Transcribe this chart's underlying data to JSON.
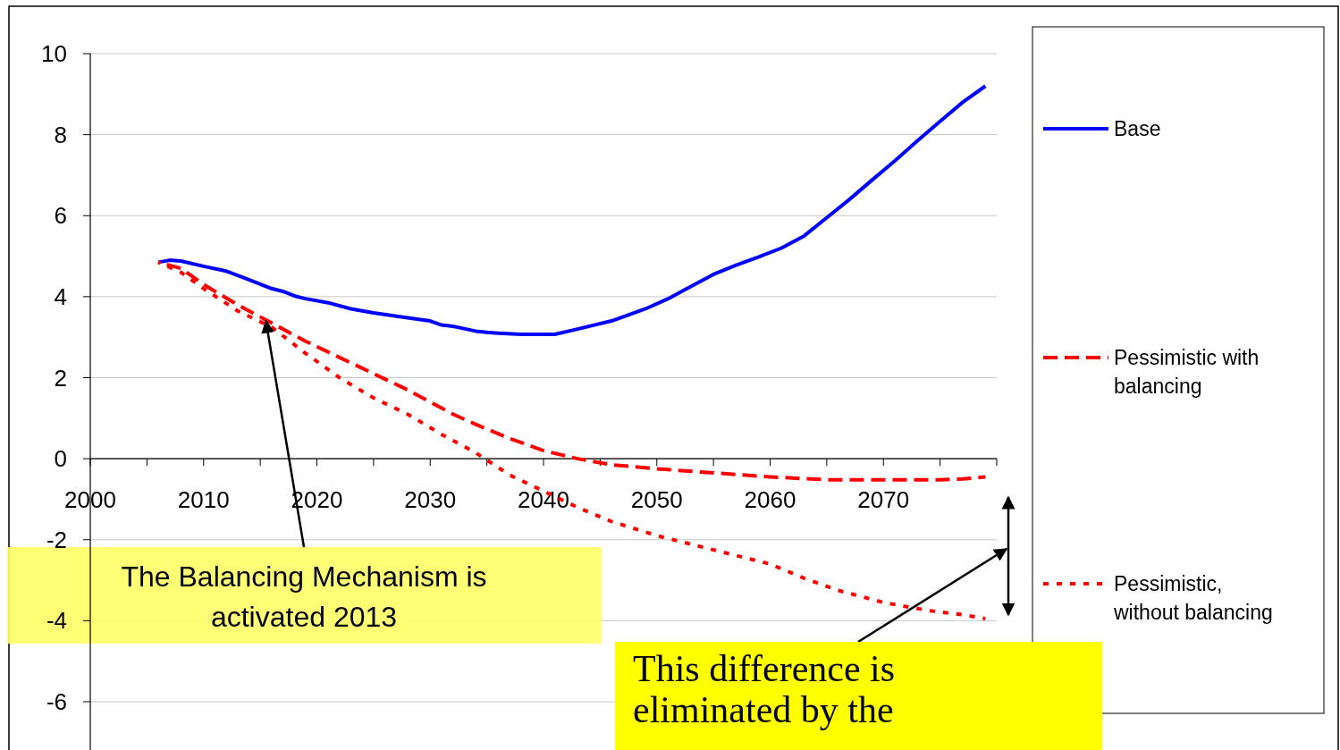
{
  "chart_data": {
    "type": "line",
    "xlim": [
      2000,
      2080
    ],
    "xticks": [
      2000,
      {
        "value": 2005,
        "label": null
      },
      2010,
      {
        "value": 2015,
        "label": null
      },
      2020,
      {
        "value": 2025,
        "label": null
      },
      2030,
      {
        "value": 2035,
        "label": null
      },
      2040,
      {
        "value": 2045,
        "label": null
      },
      2050,
      {
        "value": 2055,
        "label": null
      },
      2060,
      {
        "value": 2065,
        "label": null
      },
      2070,
      {
        "value": 2075,
        "label": null
      },
      {
        "value": 2080,
        "label": null
      }
    ],
    "ylim": [
      -6,
      10
    ],
    "yticks": [
      -6,
      -4,
      -2,
      0,
      2,
      4,
      6,
      8,
      10
    ],
    "grid": "y",
    "legend": "right",
    "series": [
      {
        "name": "Base",
        "color": "#0000ff",
        "line_style": "solid",
        "x": [
          2006,
          2007,
          2008,
          2010,
          2012,
          2014,
          2016,
          2017,
          2018,
          2019,
          2021,
          2023,
          2025,
          2028,
          2030,
          2031,
          2032,
          2034,
          2035,
          2036,
          2038,
          2041,
          2043,
          2046,
          2049,
          2051,
          2053,
          2055,
          2057,
          2059,
          2061,
          2063,
          2065,
          2067,
          2069,
          2071,
          2073,
          2075,
          2077,
          2079
        ],
        "values": [
          4.85,
          4.9,
          4.88,
          4.75,
          4.63,
          4.42,
          4.2,
          4.13,
          4.02,
          3.95,
          3.85,
          3.7,
          3.6,
          3.48,
          3.4,
          3.3,
          3.27,
          3.15,
          3.12,
          3.1,
          3.07,
          3.07,
          3.2,
          3.4,
          3.7,
          3.95,
          4.25,
          4.55,
          4.78,
          4.98,
          5.2,
          5.5,
          5.95,
          6.4,
          6.88,
          7.35,
          7.85,
          8.33,
          8.8,
          9.2
        ]
      },
      {
        "name": "Pessimistic with balancing",
        "color": "#ff0000",
        "line_style": "dashed",
        "x": [
          2006,
          2008,
          2010,
          2013,
          2016,
          2019,
          2022,
          2025,
          2028,
          2030,
          2032,
          2034,
          2037,
          2040,
          2043,
          2046,
          2050,
          2055,
          2060,
          2065,
          2070,
          2075,
          2077,
          2079
        ],
        "values": [
          4.85,
          4.7,
          4.3,
          3.8,
          3.35,
          2.9,
          2.5,
          2.1,
          1.7,
          1.4,
          1.1,
          0.85,
          0.5,
          0.2,
          0.0,
          -0.15,
          -0.25,
          -0.35,
          -0.45,
          -0.52,
          -0.52,
          -0.52,
          -0.5,
          -0.45
        ]
      },
      {
        "name": "Pessimistic, without balancing",
        "color": "#ff0000",
        "line_style": "dotted",
        "x": [
          2006,
          2008,
          2010,
          2013,
          2016,
          2019,
          2022,
          2025,
          2028,
          2031,
          2034,
          2037,
          2040,
          2043,
          2046,
          2050,
          2055,
          2060,
          2063,
          2066,
          2070,
          2074,
          2077,
          2079
        ],
        "values": [
          4.85,
          4.6,
          4.2,
          3.65,
          3.25,
          2.6,
          2.0,
          1.5,
          1.1,
          0.6,
          0.15,
          -0.4,
          -0.8,
          -1.2,
          -1.55,
          -1.9,
          -2.25,
          -2.6,
          -2.95,
          -3.25,
          -3.55,
          -3.75,
          -3.85,
          -3.95
        ]
      }
    ],
    "annotations": [
      {
        "text": "The Balancing Mechanism is\nactivated 2013",
        "x": 2015.5,
        "y": 3.4
      },
      "This difference is\neliminated by the"
    ]
  }
}
